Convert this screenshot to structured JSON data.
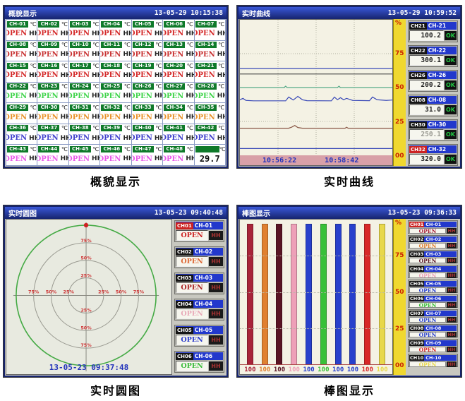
{
  "captions": {
    "overview": "概貌显示",
    "curves": "实时曲线",
    "circle": "实时圆图",
    "bars": "棒图显示"
  },
  "overview": {
    "title": "概貌显示",
    "datetime": "13-05-29 10:15:38",
    "unit": "℃",
    "open_label": "OPEN",
    "alarm_label": "HH",
    "extra_cell": {
      "value": "29.7"
    },
    "rows": [
      {
        "open_color": "#d42a2a",
        "channels": [
          "CH-01",
          "CH-02",
          "CH-03",
          "CH-04",
          "CH-05",
          "CH-06",
          "CH-07"
        ]
      },
      {
        "open_color": "#c83232",
        "channels": [
          "CH-08",
          "CH-09",
          "CH-10",
          "CH-11",
          "CH-12",
          "CH-13",
          "CH-14"
        ]
      },
      {
        "open_color": "#d42a2a",
        "channels": [
          "CH-15",
          "CH-16",
          "CH-17",
          "CH-18",
          "CH-19",
          "CH-20",
          "CH-21"
        ]
      },
      {
        "open_color": "#3fd44a",
        "channels": [
          "CH-22",
          "CH-23",
          "CH-24",
          "CH-25",
          "CH-26",
          "CH-27",
          "CH-28"
        ]
      },
      {
        "open_color": "#e8922a",
        "channels": [
          "CH-29",
          "CH-30",
          "CH-31",
          "CH-32",
          "CH-33",
          "CH-34",
          "CH-35"
        ]
      },
      {
        "open_color": "#4040cc",
        "channels": [
          "CH-36",
          "CH-37",
          "CH-38",
          "CH-39",
          "CH-40",
          "CH-41",
          "CH-42"
        ]
      },
      {
        "open_color": "#e85ae8",
        "channels": [
          "CH-43",
          "CH-44",
          "CH-45",
          "CH-46",
          "CH-47",
          "CH-48"
        ]
      }
    ]
  },
  "curves": {
    "title": "实时曲线",
    "datetime": "13-05-29 10:59:52",
    "scale": {
      "unit": "%",
      "ticks": [
        "75",
        "50",
        "25",
        "00"
      ]
    },
    "time_labels": [
      "10:56:22",
      "10:58:42"
    ],
    "channels": [
      {
        "id": "CH21",
        "name": "CH-21",
        "value": "100.2",
        "status": "OK",
        "id_bg": "#151515",
        "value_color": "#222222"
      },
      {
        "id": "CH22",
        "name": "CH-22",
        "value": "300.1",
        "status": "OK",
        "id_bg": "#151515",
        "value_color": "#222222"
      },
      {
        "id": "CH26",
        "name": "CH-26",
        "value": "200.2",
        "status": "OK",
        "id_bg": "#151515",
        "value_color": "#222222"
      },
      {
        "id": "CH08",
        "name": "CH-08",
        "value": "31.0",
        "status": "OK",
        "id_bg": "#151515",
        "value_color": "#222222"
      },
      {
        "id": "CH30",
        "name": "CH-30",
        "value": "250.1",
        "status": "OK",
        "id_bg": "#151515",
        "value_color": "#9a9a92"
      },
      {
        "id": "CH32",
        "name": "CH-32",
        "value": "320.0",
        "status": "OK",
        "id_bg": "#cc2222",
        "value_color": "#222222"
      }
    ]
  },
  "circle": {
    "title": "实时圆图",
    "datetime": "13-05-23 09:40:48",
    "plot_datetime": "13-05-23 09:37:48",
    "ring_labels": [
      "25%",
      "50%",
      "75%"
    ],
    "channels": [
      {
        "id": "CH01",
        "name": "CH-01",
        "status": "OPEN",
        "alarm": "HH",
        "open_color": "#cc2222",
        "id_bg": "#cc2222"
      },
      {
        "id": "CH02",
        "name": "CH-02",
        "status": "OPEN",
        "alarm": "HH",
        "open_color": "#dd6633",
        "id_bg": "#151515"
      },
      {
        "id": "CH03",
        "name": "CH-03",
        "status": "OPEN",
        "alarm": "HH",
        "open_color": "#aa2222",
        "id_bg": "#151515"
      },
      {
        "id": "CH04",
        "name": "CH-04",
        "status": "OPEN",
        "alarm": "HH",
        "open_color": "#e8a8b8",
        "id_bg": "#151515"
      },
      {
        "id": "CH05",
        "name": "CH-05",
        "status": "OPEN",
        "alarm": "HH",
        "open_color": "#2a3acc",
        "id_bg": "#151515"
      },
      {
        "id": "CH06",
        "name": "CH-06",
        "status": "OPEN",
        "alarm": "HH",
        "open_color": "#3abb3a",
        "id_bg": "#151515"
      }
    ]
  },
  "bars": {
    "title": "棒图显示",
    "datetime": "13-05-23 09:36:33",
    "scale": {
      "unit": "%",
      "ticks": [
        "75",
        "50",
        "25",
        "00"
      ]
    },
    "channels": [
      {
        "id": "CH01",
        "name": "CH-01",
        "status": "OPEN",
        "alarm": "HH",
        "id_bg": "#cc2222"
      },
      {
        "id": "CH02",
        "name": "CH-02",
        "status": "OPEN",
        "alarm": "HH",
        "id_bg": "#151515"
      },
      {
        "id": "CH03",
        "name": "CH-03",
        "status": "OPEN",
        "alarm": "HH",
        "id_bg": "#151515"
      },
      {
        "id": "CH04",
        "name": "CH-04",
        "status": "OPEN",
        "alarm": "HH",
        "id_bg": "#151515"
      },
      {
        "id": "CH05",
        "name": "CH-05",
        "status": "OPEN",
        "alarm": "HH",
        "id_bg": "#151515"
      },
      {
        "id": "CH06",
        "name": "CH-06",
        "status": "OPEN",
        "alarm": "HH",
        "id_bg": "#151515"
      },
      {
        "id": "CH07",
        "name": "CH-07",
        "status": "OPEN",
        "alarm": "HH",
        "id_bg": "#151515"
      },
      {
        "id": "CH08",
        "name": "CH-08",
        "status": "OPEN",
        "alarm": "HH",
        "id_bg": "#151515"
      },
      {
        "id": "CH09",
        "name": "CH-09",
        "status": "OPEN",
        "alarm": "HH",
        "id_bg": "#151515"
      },
      {
        "id": "CH10",
        "name": "CH-10",
        "status": "OPEN",
        "alarm": "HH",
        "id_bg": "#151515"
      }
    ]
  },
  "chart_data": [
    {
      "type": "line",
      "title": "实时曲线",
      "ylabel": "%",
      "ylim": [
        0,
        100
      ],
      "grid": true,
      "x_time_labels": [
        "10:56:22",
        "10:58:42"
      ],
      "series": [
        {
          "name": "CH-32",
          "value": 320.0,
          "percent": 64,
          "color": "#3a4ab8",
          "points": [
            [
              0,
              64
            ],
            [
              100,
              64
            ]
          ]
        },
        {
          "name": "CH-22",
          "value": 300.1,
          "percent": 60,
          "color": "#4a4a4a",
          "points": [
            [
              0,
              60
            ],
            [
              100,
              60
            ]
          ]
        },
        {
          "name": "CH-30",
          "value": 250.1,
          "percent": 50,
          "color": "#55aa88",
          "points": [
            [
              0,
              50
            ],
            [
              29,
              50
            ],
            [
              30,
              51
            ],
            [
              31,
              50
            ],
            [
              64,
              50
            ],
            [
              65,
              51
            ],
            [
              66,
              50
            ],
            [
              100,
              50
            ]
          ]
        },
        {
          "name": "CH-26",
          "value": 200.2,
          "percent": 40,
          "color": "#3a4ab8",
          "points": [
            [
              0,
              41
            ],
            [
              2,
              42
            ],
            [
              4,
              40.5
            ],
            [
              9,
              40.2
            ],
            [
              30,
              40.2
            ],
            [
              32,
              43
            ],
            [
              35,
              40.8
            ],
            [
              38,
              43.5
            ],
            [
              41,
              41
            ],
            [
              44,
              40.3
            ],
            [
              60,
              40.2
            ],
            [
              62,
              43
            ],
            [
              64,
              41
            ],
            [
              66,
              42.5
            ],
            [
              68,
              41
            ],
            [
              70,
              42
            ],
            [
              74,
              40.5
            ],
            [
              85,
              40.3
            ],
            [
              87,
              43
            ],
            [
              90,
              41
            ],
            [
              96,
              40.5
            ],
            [
              100,
              40.8
            ]
          ]
        },
        {
          "name": "CH-21",
          "value": 100.2,
          "percent": 20,
          "color": "#885544",
          "points": [
            [
              0,
              20
            ],
            [
              32,
              20
            ],
            [
              34,
              20.8
            ],
            [
              36,
              22
            ],
            [
              38,
              20.5
            ],
            [
              41,
              20
            ],
            [
              69,
              20
            ],
            [
              70,
              20.7
            ],
            [
              71,
              20
            ],
            [
              100,
              20
            ]
          ]
        },
        {
          "name": "CH-08",
          "value": 31.0,
          "percent": 5,
          "color": "#3a4ab8",
          "points": [
            [
              0,
              5
            ],
            [
              100,
              5
            ]
          ]
        }
      ]
    },
    {
      "type": "bar",
      "title": "棒图显示",
      "ylim": [
        0,
        100
      ],
      "categories": [
        "CH-01",
        "CH-02",
        "CH-03",
        "CH-04",
        "CH-05",
        "CH-06",
        "CH-07",
        "CH-08",
        "CH-09",
        "CH-10"
      ],
      "values": [
        100,
        100,
        100,
        100,
        100,
        100,
        100,
        100,
        100,
        100
      ],
      "value_labels": [
        "100",
        "100",
        "100",
        "100",
        "100",
        "100",
        "100",
        "100",
        "100",
        "100"
      ],
      "colors": [
        "#a8243a",
        "#e08030",
        "#5a1424",
        "#eea0b8",
        "#2840cc",
        "#38c038",
        "#2840cc",
        "#2840cc",
        "#d82828",
        "#e8d84a"
      ]
    }
  ]
}
